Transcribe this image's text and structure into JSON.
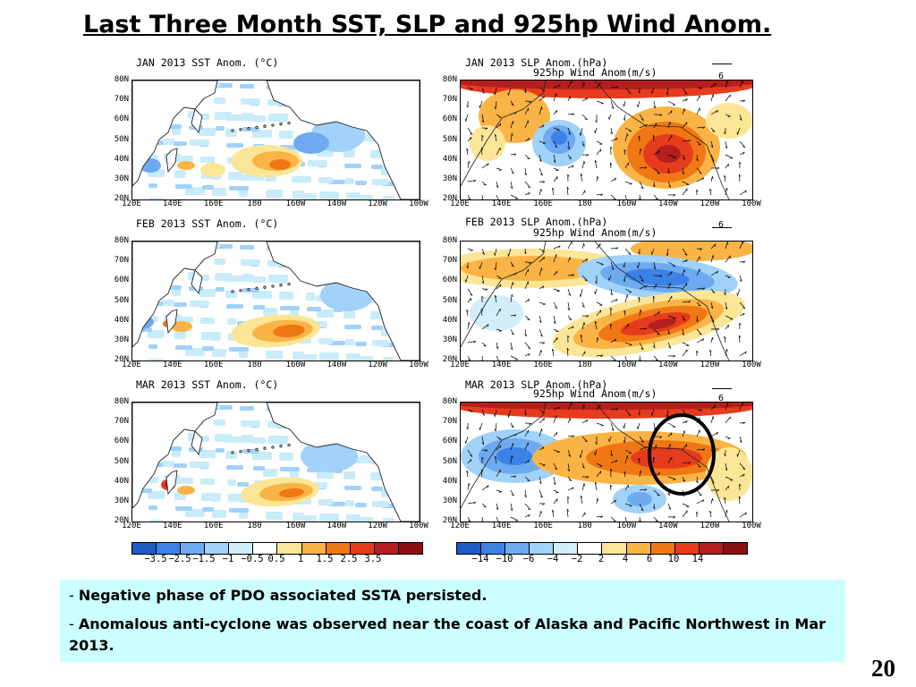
{
  "slide": {
    "title": "Last Three Month SST, SLP and 925hp Wind Anom.",
    "page_number": "20"
  },
  "sst_panels": [
    {
      "title": "JAN 2013 SST Anom. (°C)"
    },
    {
      "title": "FEB 2013 SST Anom. (°C)"
    },
    {
      "title": "MAR 2013 SST Anom. (°C)"
    }
  ],
  "slp_panels": [
    {
      "title": "JAN 2013 SLP Anom.(hPa)",
      "subtitle": "925hp Wind Anom(m/s)",
      "ref_vector": "6"
    },
    {
      "title": "FEB 2013 SLP Anom.(hPa)",
      "subtitle": "925hp Wind Anom(m/s)",
      "ref_vector": "6"
    },
    {
      "title": "MAR 2013 SLP Anom.(hPa)",
      "subtitle": "925hp Wind Anom(m/s)",
      "ref_vector": "6"
    }
  ],
  "axes": {
    "lat_labels": [
      "80N",
      "70N",
      "60N",
      "50N",
      "40N",
      "30N",
      "20N"
    ],
    "lon_labels": [
      "120E",
      "140E",
      "160E",
      "180",
      "160W",
      "140W",
      "120W",
      "100W"
    ]
  },
  "sst_colorbar": {
    "labels": [
      "−3.5",
      "−2.5",
      "−1.5",
      "−1",
      "−0.5",
      "0.5",
      "1",
      "1.5",
      "2.5",
      "3.5"
    ],
    "colors": [
      "#1e5ac8",
      "#3c82e6",
      "#6eaaf0",
      "#a0d2fa",
      "#d2eefa",
      "#ffffff",
      "#fae696",
      "#fab446",
      "#f07814",
      "#e63c1e",
      "#b41e1e",
      "#8c0f0f"
    ]
  },
  "slp_colorbar": {
    "labels": [
      "−14",
      "−10",
      "−6",
      "−4",
      "−2",
      "2",
      "4",
      "6",
      "10",
      "14"
    ],
    "colors": [
      "#1e5ac8",
      "#3c82e6",
      "#6eaaf0",
      "#a0d2fa",
      "#d2eefa",
      "#ffffff",
      "#fae696",
      "#fab446",
      "#f07814",
      "#e63c1e",
      "#b41e1e",
      "#8c0f0f"
    ]
  },
  "bullets": [
    {
      "dash": "- ",
      "text": "Negative phase of PDO associated SSTA persisted."
    },
    {
      "dash": "- ",
      "text": "Anomalous anti-cyclone was observed near the coast of Alaska and Pacific Northwest in Mar 2013."
    }
  ]
}
